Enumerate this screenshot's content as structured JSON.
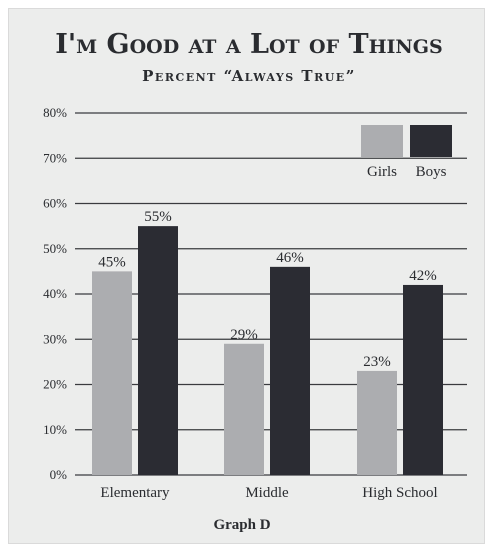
{
  "chart_data": {
    "type": "bar",
    "title": "I'm Good at a Lot of Things",
    "subtitle": "Percent “Always True”",
    "caption": "Graph D",
    "categories": [
      "Elementary",
      "Middle",
      "High School"
    ],
    "series": [
      {
        "name": "Girls",
        "values": [
          45,
          29,
          23
        ],
        "color": "#acadb0"
      },
      {
        "name": "Boys",
        "values": [
          55,
          46,
          42
        ],
        "color": "#2b2c33"
      }
    ],
    "data_labels": {
      "Girls": [
        "45%",
        "29%",
        "23%"
      ],
      "Boys": [
        "55%",
        "46%",
        "42%"
      ]
    },
    "y_ticks": [
      "0%",
      "10%",
      "20%",
      "30%",
      "40%",
      "50%",
      "60%",
      "70%",
      "80%"
    ],
    "ylim": [
      0,
      80
    ],
    "grid": true,
    "legend_position": "top-right"
  }
}
